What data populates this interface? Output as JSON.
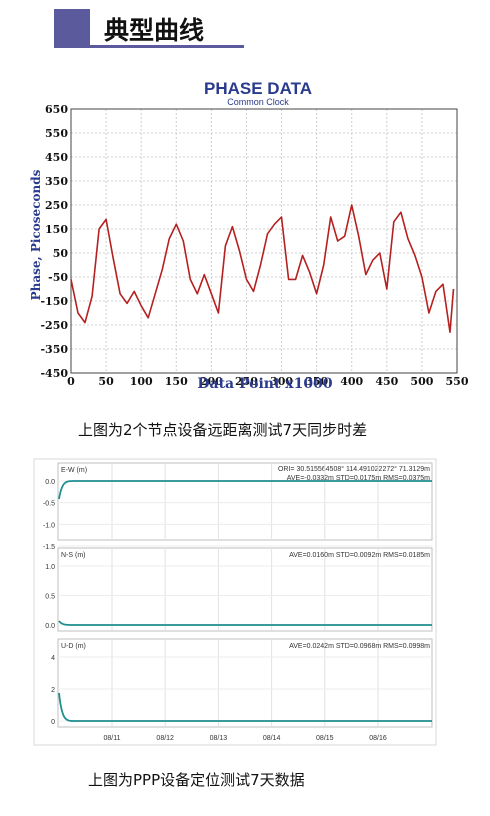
{
  "section_title": "典型曲线",
  "caption1": "上图为2个节点设备远距离测试7天同步时差",
  "caption2": "上图为PPP设备定位测试7天数据",
  "chart_data": [
    {
      "type": "line",
      "title": "PHASE DATA",
      "subtitle": "Common Clock",
      "xlabel": "Data Point x1000",
      "ylabel": "Phase, Picoseconds",
      "xlim": [
        0,
        550
      ],
      "ylim": [
        -450,
        650
      ],
      "xticks": [
        0,
        50,
        100,
        150,
        200,
        250,
        300,
        350,
        400,
        450,
        500,
        550
      ],
      "yticks": [
        650,
        550,
        450,
        350,
        250,
        150,
        50,
        -50,
        -150,
        -250,
        -350,
        -450
      ],
      "grid": true,
      "color": "#b52020",
      "series": [
        {
          "x": [
            0,
            10,
            20,
            30,
            40,
            50,
            60,
            70,
            80,
            90,
            100,
            110,
            120,
            130,
            140,
            150,
            160,
            170,
            180,
            190,
            200,
            210,
            220,
            230,
            240,
            250,
            260,
            270,
            280,
            290,
            300,
            310,
            320,
            330,
            340,
            350,
            360,
            370,
            380,
            390,
            400,
            410,
            420,
            430,
            440,
            450,
            460,
            470,
            480,
            490,
            500,
            510,
            520,
            530,
            540,
            545
          ],
          "y": [
            -60,
            -200,
            -240,
            -130,
            150,
            190,
            30,
            -120,
            -160,
            -110,
            -170,
            -220,
            -120,
            -20,
            110,
            170,
            100,
            -60,
            -120,
            -40,
            -120,
            -200,
            80,
            160,
            60,
            -60,
            -110,
            0,
            130,
            170,
            200,
            -60,
            -60,
            40,
            -30,
            -120,
            0,
            200,
            100,
            120,
            250,
            120,
            -40,
            20,
            50,
            -100,
            180,
            220,
            110,
            40,
            -50,
            -200,
            -110,
            -80,
            -280,
            -100
          ]
        }
      ]
    },
    {
      "type": "line",
      "header": "ORI= 30.515564508° 114.491022272° 71.3129m",
      "xticks": [
        "08/11",
        "08/12",
        "08/13",
        "08/14",
        "08/15",
        "08/16"
      ],
      "grid": true,
      "color": "#1d8f8f",
      "panels": [
        {
          "label": "E-W (m)",
          "stats": "AVE=-0.0332m STD=0.0175m RMS=0.0375m",
          "yticks": [
            "0.0",
            "-0.5",
            "-1.0",
            "-1.5"
          ],
          "level": -0.033
        },
        {
          "label": "N-S (m)",
          "stats": "AVE=0.0160m STD=0.0092m RMS=0.0185m",
          "yticks": [
            "1.0",
            "0.5",
            "0.0"
          ],
          "level": 0.016
        },
        {
          "label": "U-D (m)",
          "stats": "AVE=0.0242m STD=0.0968m RMS=0.0998m",
          "yticks": [
            "4",
            "2",
            "0"
          ],
          "level": 0.024
        }
      ]
    }
  ]
}
